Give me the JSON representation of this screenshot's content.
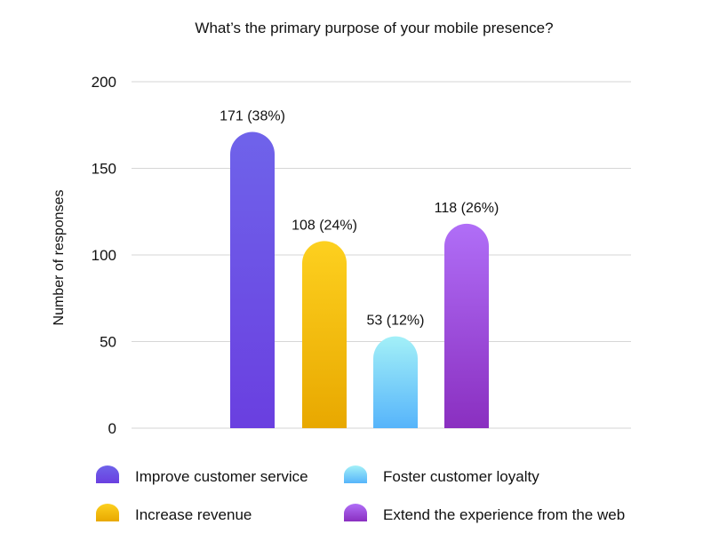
{
  "chart_data": {
    "type": "bar",
    "title": "What’s the primary purpose of your mobile presence?",
    "ylabel": "Number of responses",
    "xlabel": "",
    "ylim": [
      0,
      200
    ],
    "yticks": [
      0,
      50,
      100,
      150,
      200
    ],
    "grid": true,
    "legend_position": "bottom",
    "categories": [
      "Improve customer service",
      "Increase revenue",
      "Foster customer loyalty",
      "Extend the experience from the web"
    ],
    "values": [
      171,
      108,
      53,
      118
    ],
    "data_labels": [
      "171 (38%)",
      "108 (24%)",
      "53 (12%)",
      "118 (26%)"
    ],
    "colors": [
      {
        "top": "#6f63ea",
        "bottom": "#6a3fe0"
      },
      {
        "top": "#fdd01f",
        "bottom": "#e8a800"
      },
      {
        "top": "#a3f0f8",
        "bottom": "#56b4fa"
      },
      {
        "top": "#b06ef7",
        "bottom": "#8a2fc0"
      }
    ]
  }
}
